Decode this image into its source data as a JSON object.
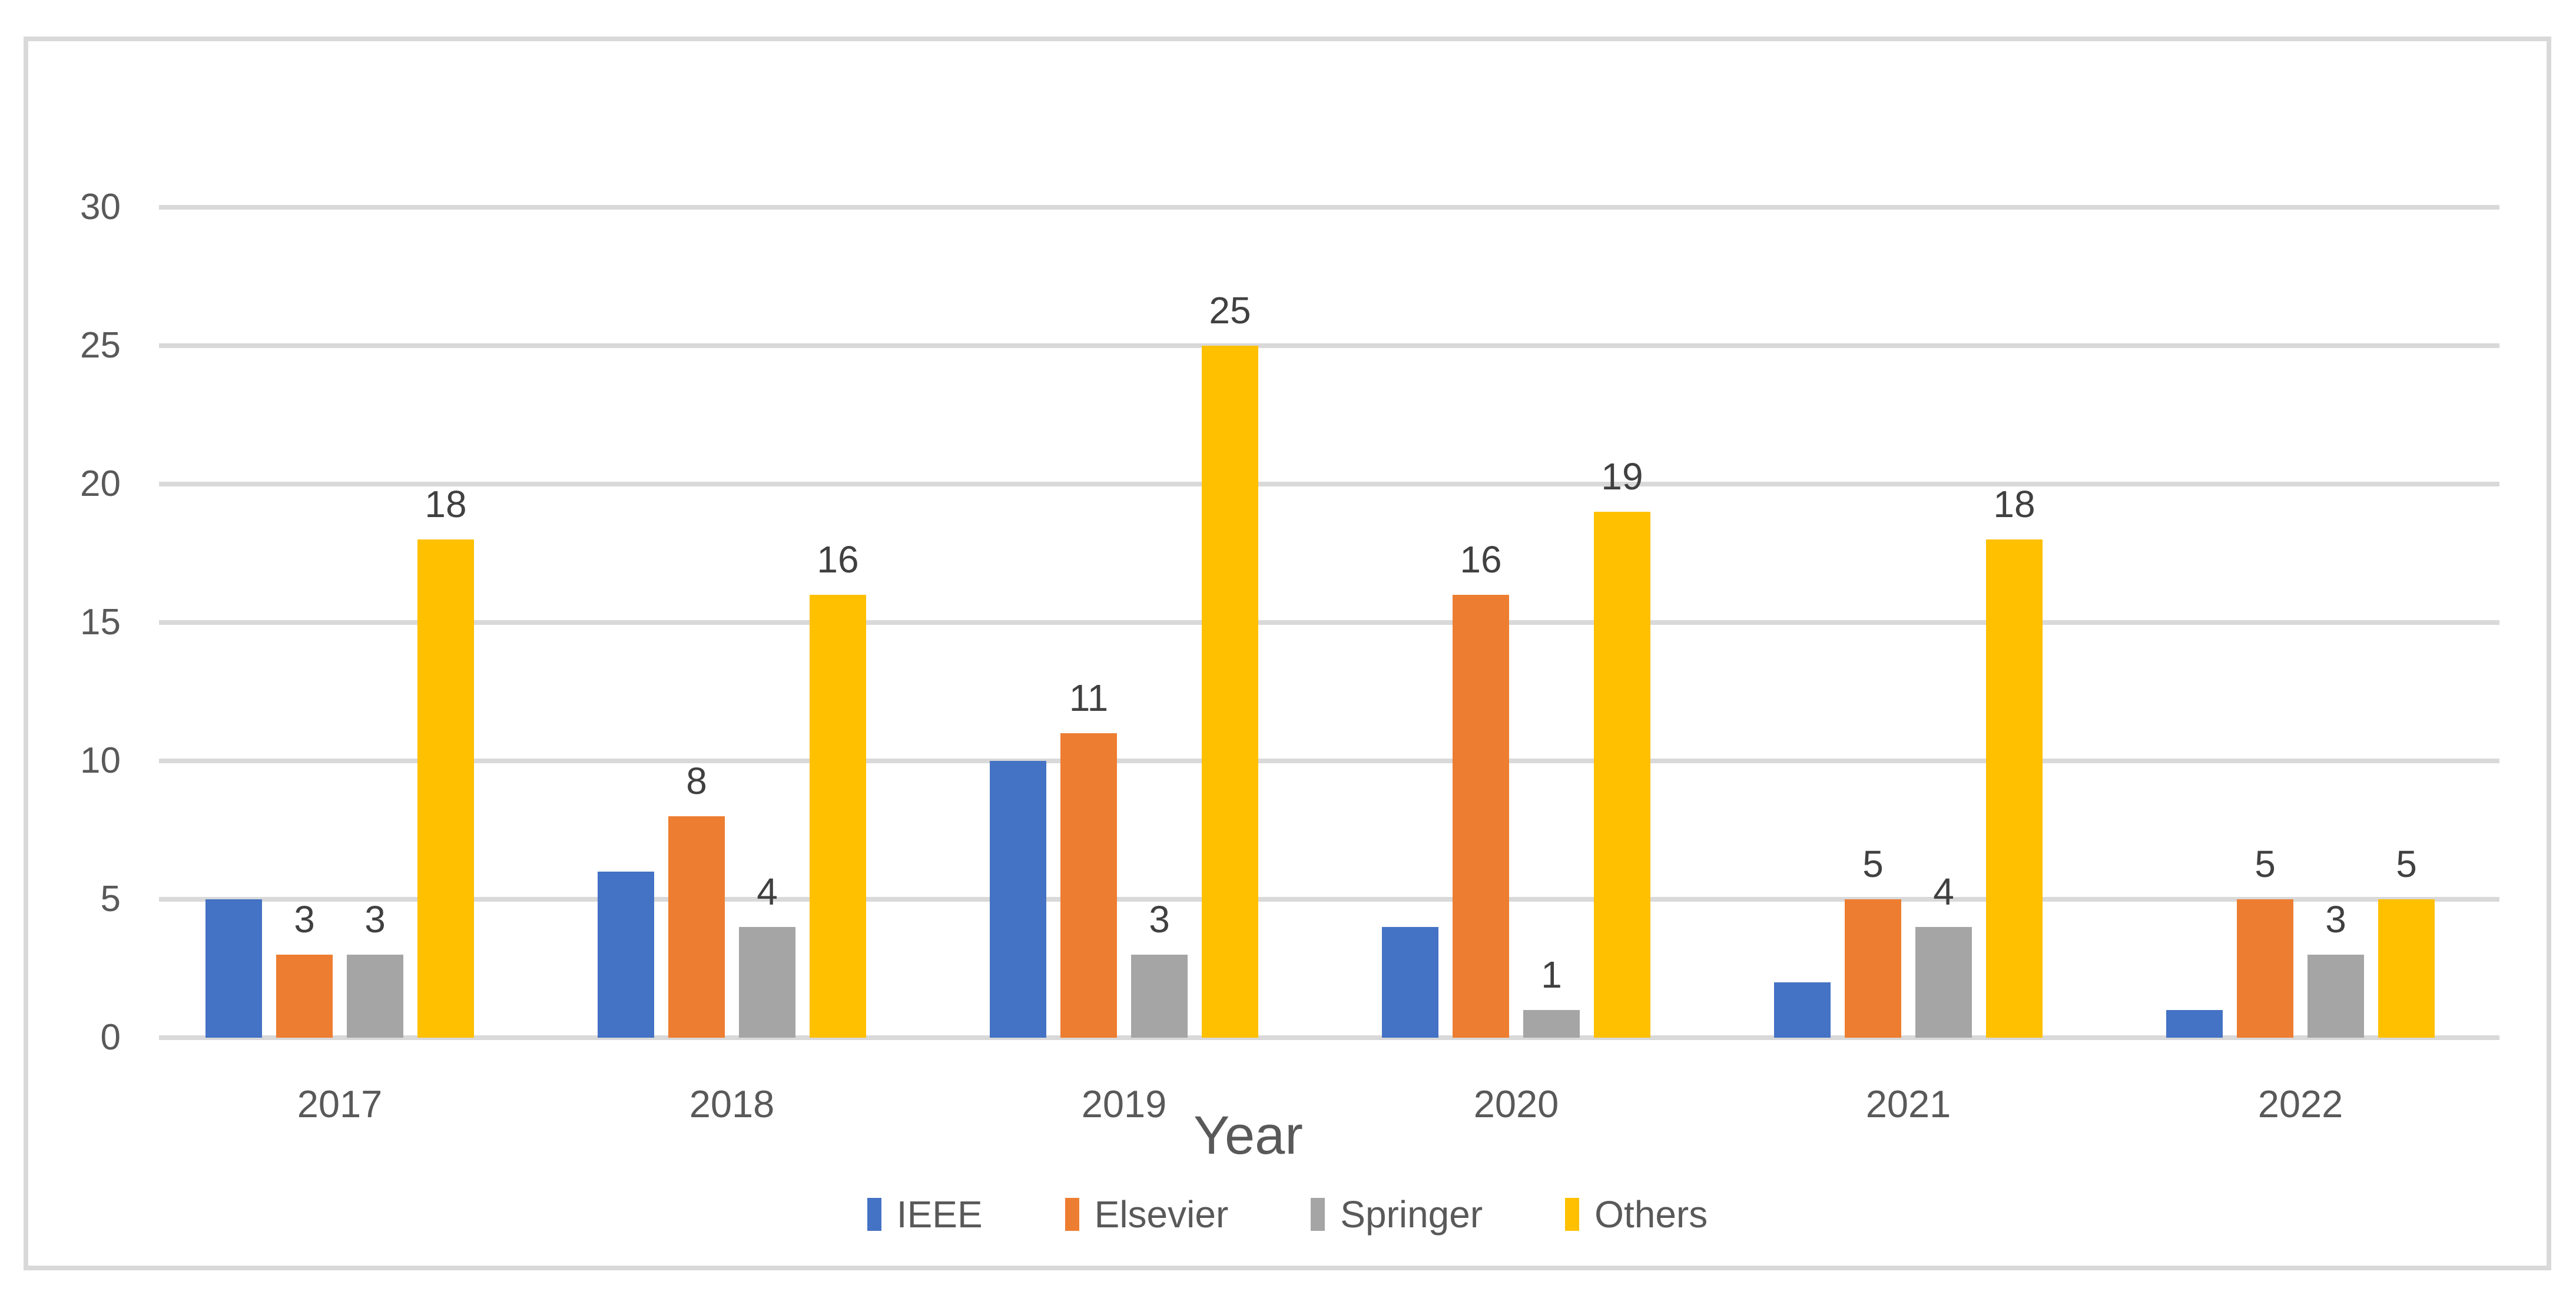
{
  "chart_data": {
    "type": "bar",
    "title": "",
    "xlabel": "Year",
    "ylabel": "",
    "categories": [
      "2017",
      "2018",
      "2019",
      "2020",
      "2021",
      "2022"
    ],
    "series": [
      {
        "name": "IEEE",
        "color": "#4472C4",
        "values": [
          5,
          6,
          10,
          4,
          2,
          1
        ],
        "show_data_labels": false
      },
      {
        "name": "Elsevier",
        "color": "#ED7D31",
        "values": [
          3,
          8,
          11,
          16,
          5,
          5
        ],
        "show_data_labels": true
      },
      {
        "name": "Springer",
        "color": "#A5A5A5",
        "values": [
          3,
          4,
          3,
          1,
          4,
          3
        ],
        "show_data_labels": true
      },
      {
        "name": "Others",
        "color": "#FFC000",
        "values": [
          18,
          16,
          25,
          19,
          18,
          5
        ],
        "show_data_labels": true
      }
    ],
    "ylim": [
      0,
      30
    ],
    "yticks": [
      0,
      5,
      10,
      15,
      20,
      25,
      30
    ],
    "grid": true,
    "gridline_color": "#D9D9D9",
    "frame_color": "#D9D9D9",
    "axis_text_color": "#595959",
    "data_label_color": "#404040",
    "legend_position": "bottom"
  }
}
